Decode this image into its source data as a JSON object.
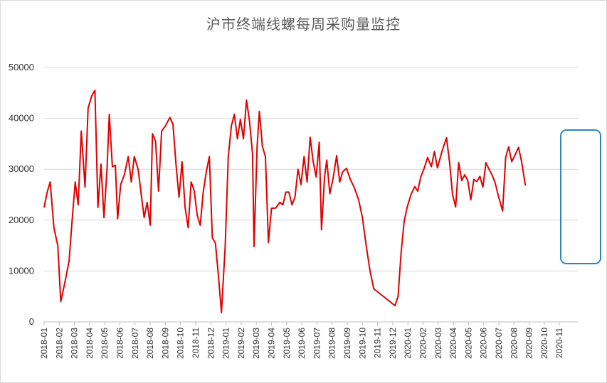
{
  "chart_data": {
    "type": "line",
    "title": "沪市终端线螺每周采购量监控",
    "xlabel": "",
    "ylabel": "",
    "ylim": [
      0,
      50000
    ],
    "yticks": [
      0,
      10000,
      20000,
      30000,
      40000,
      50000
    ],
    "grid": true,
    "colors": {
      "series": "#e00000",
      "highlight_box": "#2e86c1",
      "grid": "#d9d9d9"
    },
    "x_labels": [
      "2018-01",
      "2018-02",
      "2018-03",
      "2018-04",
      "2018-05",
      "2018-06",
      "2018-07",
      "2018-08",
      "2018-09",
      "2018-10",
      "2018-11",
      "2018-12",
      "2019-01",
      "2019-02",
      "2019-03",
      "2019-04",
      "2019-05",
      "2019-06",
      "2019-07",
      "2019-08",
      "2019-09",
      "2019-10",
      "2019-11",
      "2019-12",
      "2020-01",
      "2020-02",
      "2020-03",
      "2020-04",
      "2020-05",
      "2020-06",
      "2020-07",
      "2020-08",
      "2020-09",
      "2020-10",
      "2020-11"
    ],
    "series": [
      {
        "color": "#e00000",
        "points": [
          [
            0.0,
            22500
          ],
          [
            0.2,
            25500
          ],
          [
            0.4,
            27500
          ],
          [
            0.65,
            18500
          ],
          [
            0.9,
            15000
          ],
          [
            1.1,
            4000
          ],
          [
            1.35,
            7500
          ],
          [
            1.65,
            12000
          ],
          [
            1.85,
            20000
          ],
          [
            2.05,
            27500
          ],
          [
            2.25,
            23000
          ],
          [
            2.45,
            37500
          ],
          [
            2.7,
            26500
          ],
          [
            2.9,
            42000
          ],
          [
            3.15,
            44500
          ],
          [
            3.35,
            45500
          ],
          [
            3.55,
            22500
          ],
          [
            3.75,
            31000
          ],
          [
            3.95,
            20500
          ],
          [
            4.15,
            30000
          ],
          [
            4.3,
            40800
          ],
          [
            4.5,
            30500
          ],
          [
            4.7,
            30800
          ],
          [
            4.85,
            20300
          ],
          [
            5.05,
            27000
          ],
          [
            5.3,
            29000
          ],
          [
            5.55,
            32500
          ],
          [
            5.75,
            27500
          ],
          [
            5.95,
            32500
          ],
          [
            6.2,
            30000
          ],
          [
            6.45,
            24000
          ],
          [
            6.6,
            20500
          ],
          [
            6.8,
            23500
          ],
          [
            7.0,
            19000
          ],
          [
            7.15,
            37000
          ],
          [
            7.35,
            35500
          ],
          [
            7.55,
            25700
          ],
          [
            7.75,
            37500
          ],
          [
            8.0,
            38500
          ],
          [
            8.3,
            40200
          ],
          [
            8.5,
            38800
          ],
          [
            8.7,
            31000
          ],
          [
            8.9,
            24500
          ],
          [
            9.1,
            31500
          ],
          [
            9.3,
            22500
          ],
          [
            9.5,
            18500
          ],
          [
            9.7,
            27500
          ],
          [
            9.9,
            25800
          ],
          [
            10.1,
            21000
          ],
          [
            10.3,
            19000
          ],
          [
            10.5,
            25500
          ],
          [
            10.7,
            29500
          ],
          [
            10.9,
            32500
          ],
          [
            11.1,
            16500
          ],
          [
            11.3,
            15500
          ],
          [
            11.5,
            9000
          ],
          [
            11.7,
            1800
          ],
          [
            11.95,
            15000
          ],
          [
            12.15,
            32500
          ],
          [
            12.35,
            38500
          ],
          [
            12.55,
            40800
          ],
          [
            12.75,
            36000
          ],
          [
            12.95,
            39800
          ],
          [
            13.15,
            36000
          ],
          [
            13.35,
            43600
          ],
          [
            13.55,
            39500
          ],
          [
            13.75,
            33000
          ],
          [
            13.85,
            14800
          ],
          [
            14.05,
            34500
          ],
          [
            14.2,
            41400
          ],
          [
            14.4,
            34500
          ],
          [
            14.6,
            32500
          ],
          [
            14.8,
            15600
          ],
          [
            15.0,
            22300
          ],
          [
            15.3,
            22400
          ],
          [
            15.55,
            23500
          ],
          [
            15.75,
            23000
          ],
          [
            15.95,
            25500
          ],
          [
            16.15,
            25500
          ],
          [
            16.35,
            23000
          ],
          [
            16.55,
            24500
          ],
          [
            16.75,
            30000
          ],
          [
            16.95,
            27000
          ],
          [
            17.15,
            32500
          ],
          [
            17.35,
            27500
          ],
          [
            17.55,
            36300
          ],
          [
            17.75,
            31500
          ],
          [
            17.95,
            28500
          ],
          [
            18.15,
            35300
          ],
          [
            18.3,
            18100
          ],
          [
            18.5,
            28500
          ],
          [
            18.65,
            31800
          ],
          [
            18.85,
            25200
          ],
          [
            19.05,
            28000
          ],
          [
            19.3,
            32700
          ],
          [
            19.5,
            27500
          ],
          [
            19.7,
            29500
          ],
          [
            19.95,
            30200
          ],
          [
            20.2,
            28000
          ],
          [
            20.45,
            26500
          ],
          [
            20.75,
            24000
          ],
          [
            21.0,
            20500
          ],
          [
            21.25,
            15000
          ],
          [
            21.5,
            10000
          ],
          [
            21.75,
            6500
          ],
          [
            23.15,
            3200
          ],
          [
            23.35,
            5000
          ],
          [
            23.55,
            13500
          ],
          [
            23.75,
            19700
          ],
          [
            23.95,
            22500
          ],
          [
            24.2,
            25000
          ],
          [
            24.45,
            26600
          ],
          [
            24.65,
            25700
          ],
          [
            24.85,
            28500
          ],
          [
            25.05,
            30000
          ],
          [
            25.3,
            32300
          ],
          [
            25.55,
            30500
          ],
          [
            25.75,
            33500
          ],
          [
            25.95,
            30300
          ],
          [
            26.25,
            33500
          ],
          [
            26.55,
            36200
          ],
          [
            26.75,
            31300
          ],
          [
            26.95,
            25000
          ],
          [
            27.15,
            22600
          ],
          [
            27.35,
            31300
          ],
          [
            27.55,
            27800
          ],
          [
            27.75,
            28900
          ],
          [
            27.95,
            27800
          ],
          [
            28.15,
            24000
          ],
          [
            28.35,
            28000
          ],
          [
            28.55,
            27600
          ],
          [
            28.75,
            28600
          ],
          [
            28.95,
            26500
          ],
          [
            29.15,
            31300
          ],
          [
            29.35,
            30000
          ],
          [
            29.55,
            28900
          ],
          [
            29.75,
            27400
          ],
          [
            29.95,
            25000
          ],
          [
            30.25,
            21800
          ],
          [
            30.45,
            32300
          ],
          [
            30.65,
            34400
          ],
          [
            30.85,
            31500
          ],
          [
            31.05,
            32700
          ],
          [
            31.3,
            34300
          ],
          [
            31.5,
            31500
          ],
          [
            31.75,
            26800
          ]
        ]
      }
    ]
  }
}
